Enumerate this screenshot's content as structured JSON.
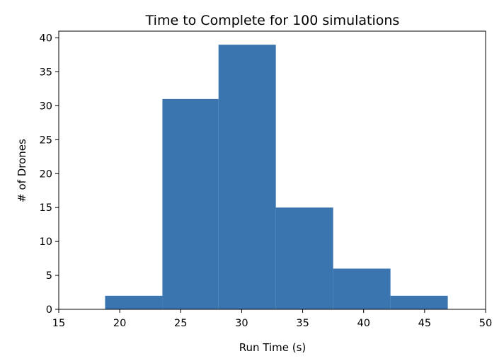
{
  "chart_data": {
    "type": "bar",
    "title": "Time to Complete for 100 simulations",
    "xlabel": "Run Time (s)",
    "ylabel": "# of Drones",
    "xlim": [
      15,
      50
    ],
    "ylim": [
      0,
      41
    ],
    "xticks": [
      "15",
      "20",
      "25",
      "30",
      "35",
      "40",
      "45",
      "50"
    ],
    "yticks": [
      "0",
      "5",
      "10",
      "15",
      "20",
      "25",
      "30",
      "35",
      "40"
    ],
    "bins": [
      {
        "start": 18.8,
        "end": 23.5,
        "count": 2
      },
      {
        "start": 23.5,
        "end": 28.1,
        "count": 31
      },
      {
        "start": 28.1,
        "end": 32.8,
        "count": 39
      },
      {
        "start": 32.8,
        "end": 37.5,
        "count": 15
      },
      {
        "start": 37.5,
        "end": 42.2,
        "count": 6
      },
      {
        "start": 42.2,
        "end": 46.9,
        "count": 2
      }
    ],
    "bar_color": "#3a75b0",
    "grid": false,
    "legend": "none"
  }
}
